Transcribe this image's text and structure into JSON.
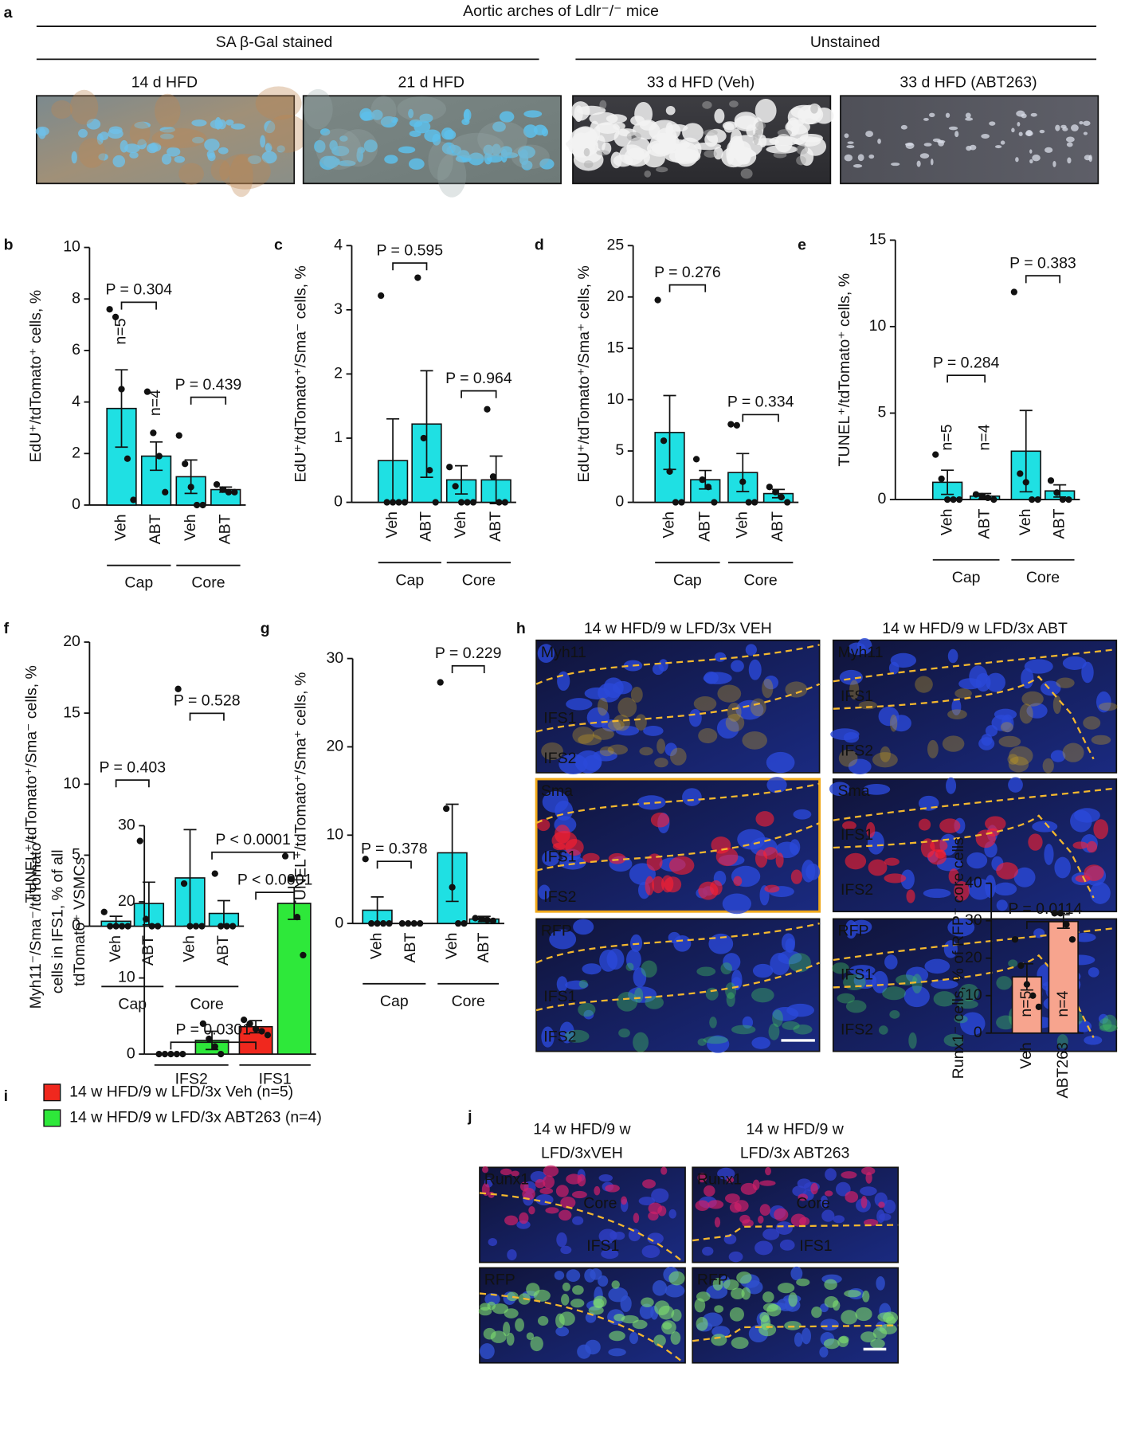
{
  "panel_a": {
    "letter": "a",
    "title": "Aortic arches of Ldlr⁻/⁻ mice",
    "groups": [
      "SA β-Gal stained",
      "Unstained"
    ],
    "images": [
      "14 d HFD",
      "21 d HFD",
      "33 d HFD (Veh)",
      "33 d HFD (ABT263)"
    ]
  },
  "panel_h": {
    "letter": "h",
    "columns": [
      "14 w HFD/9 w LFD/3x VEH",
      "14 w HFD/9 w LFD/3x ABT"
    ],
    "channels": [
      "Myh11",
      "Sma",
      "RFP"
    ],
    "layers": [
      "IFS1",
      "IFS2"
    ]
  },
  "panel_j": {
    "letter": "j",
    "columns": [
      [
        "14 w HFD/9 w",
        "LFD/3xVEH"
      ],
      [
        "14 w HFD/9 w",
        "LFD/3x ABT263"
      ]
    ],
    "channels": [
      "Runx1",
      "RFP"
    ],
    "labels": [
      "Core",
      "IFS1"
    ]
  },
  "chart_data": [
    {
      "type": "bar",
      "panel": "b",
      "ylabel": "EdU⁺/tdTomato⁺ cells, %",
      "categories": [
        "Veh",
        "ABT",
        "Veh",
        "ABT"
      ],
      "groups": [
        "Cap",
        "Core"
      ],
      "values": [
        3.75,
        1.9,
        1.1,
        0.6
      ],
      "errors": [
        1.5,
        0.55,
        0.65,
        0.1
      ],
      "points": [
        [
          7.6,
          7.3,
          4.5,
          1.8,
          0.2
        ],
        [
          4.4,
          2.8,
          1.9,
          0.5
        ],
        [
          2.7,
          1.6,
          0.7,
          0,
          0
        ],
        [
          0.8,
          0.6,
          0.5,
          0.5
        ]
      ],
      "color": "#1fe0e3",
      "ylim": [
        0,
        10
      ],
      "yticks": [
        0,
        2,
        4,
        6,
        8,
        10
      ],
      "annotations": [
        "P = 0.304",
        "P = 0.439",
        "n=5",
        "n=4"
      ]
    },
    {
      "type": "bar",
      "panel": "c",
      "ylabel": "EdU⁺/tdTomato⁺/Sma⁻ cells, %",
      "categories": [
        "Veh",
        "ABT",
        "Veh",
        "ABT"
      ],
      "groups": [
        "Cap",
        "Core"
      ],
      "values": [
        0.65,
        1.22,
        0.35,
        0.35
      ],
      "errors": [
        0.65,
        0.83,
        0.22,
        0.37
      ],
      "points": [
        [
          3.22,
          0,
          0,
          0,
          0
        ],
        [
          3.5,
          1.0,
          0.5,
          0
        ],
        [
          0.55,
          0.25,
          0,
          0,
          0
        ],
        [
          1.45,
          0.4,
          0,
          0
        ]
      ],
      "color": "#1fe0e3",
      "ylim": [
        0,
        4
      ],
      "yticks": [
        0,
        1,
        2,
        3,
        4
      ],
      "annotations": [
        "P = 0.595",
        "P = 0.964"
      ]
    },
    {
      "type": "bar",
      "panel": "d",
      "ylabel": "EdU⁺/tdTomato⁺/Sma⁺ cells, %",
      "categories": [
        "Veh",
        "ABT",
        "Veh",
        "ABT"
      ],
      "groups": [
        "Cap",
        "Core"
      ],
      "values": [
        6.8,
        2.2,
        2.9,
        0.85
      ],
      "errors": [
        3.6,
        0.9,
        1.85,
        0.4
      ],
      "points": [
        [
          19.7,
          6,
          3,
          0,
          0
        ],
        [
          4.2,
          2.2,
          1.5,
          0
        ],
        [
          7.6,
          7.5,
          2,
          0,
          0
        ],
        [
          1.5,
          1,
          0.5,
          0
        ]
      ],
      "color": "#1fe0e3",
      "ylim": [
        0,
        25
      ],
      "yticks": [
        0,
        5,
        10,
        15,
        20,
        25
      ],
      "annotations": [
        "P = 0.276",
        "P = 0.334"
      ]
    },
    {
      "type": "bar",
      "panel": "e",
      "ylabel": "TUNEL⁺/tdTomato⁺ cells, %",
      "categories": [
        "Veh",
        "ABT",
        "Veh",
        "ABT"
      ],
      "groups": [
        "Cap",
        "Core"
      ],
      "values": [
        1.0,
        0.2,
        2.8,
        0.5
      ],
      "errors": [
        0.7,
        0.15,
        2.35,
        0.35
      ],
      "points": [
        [
          2.6,
          1.2,
          0,
          0,
          0
        ],
        [
          0.3,
          0.2,
          0.1,
          0
        ],
        [
          12,
          1.5,
          1,
          0,
          0
        ],
        [
          1.1,
          0.4,
          0,
          0
        ]
      ],
      "color": "#1fe0e3",
      "ylim": [
        0,
        15
      ],
      "yticks": [
        0,
        5,
        10,
        15
      ],
      "annotations": [
        "P = 0.284",
        "P = 0.383",
        "n=5",
        "n=4"
      ]
    },
    {
      "type": "bar",
      "panel": "f",
      "ylabel": "TUNEL⁺/tdTomato⁺/Sma⁻ cells, %",
      "categories": [
        "Veh",
        "ABT",
        "Veh",
        "ABT"
      ],
      "groups": [
        "Cap",
        "Core"
      ],
      "values": [
        0.35,
        1.6,
        3.4,
        0.9
      ],
      "errors": [
        0.35,
        1.5,
        3.4,
        0.9
      ],
      "points": [
        [
          1.0,
          0,
          0,
          0,
          0
        ],
        [
          6.0,
          0.5,
          0,
          0
        ],
        [
          16.7,
          3,
          0,
          0,
          0
        ],
        [
          3.7,
          0,
          0,
          0
        ]
      ],
      "color": "#1fe0e3",
      "ylim": [
        0,
        20
      ],
      "yticks": [
        0,
        5,
        10,
        15,
        20
      ],
      "annotations": [
        "P = 0.403",
        "P = 0.528"
      ]
    },
    {
      "type": "bar",
      "panel": "g",
      "ylabel": "TUNEL⁺/tdTomato⁺/Sma⁺ cells, %",
      "categories": [
        "Veh",
        "ABT",
        "Veh",
        "ABT"
      ],
      "groups": [
        "Cap",
        "Core"
      ],
      "values": [
        1.5,
        0,
        8,
        0.5
      ],
      "errors": [
        1.5,
        0,
        5.5,
        0.3
      ],
      "points": [
        [
          7.3,
          0,
          0,
          0,
          0
        ],
        [
          0,
          0,
          0,
          0
        ],
        [
          27.3,
          13,
          4.1,
          0,
          0
        ],
        [
          0.6,
          0.5,
          0.4,
          0.3
        ]
      ],
      "color": "#1fe0e3",
      "ylim": [
        0,
        30
      ],
      "yticks": [
        0,
        10,
        20,
        30
      ],
      "annotations": [
        "P = 0.378",
        "P = 0.229"
      ]
    },
    {
      "type": "grouped-bar",
      "panel": "i",
      "ylabel": [
        "Myh11⁻/Sma⁻/tdTomato⁺",
        "cells in IFS1, % of all",
        "tdTomato⁺ VSMCs"
      ],
      "categories": [
        "IFS2",
        "IFS1"
      ],
      "series": [
        {
          "name": "14 w HFD/9 w LFD/3x Veh (n=5)",
          "color": "#f0281e",
          "values": [
            0,
            3.6
          ],
          "errors": [
            0,
            0.8
          ],
          "points": [
            [
              0,
              0,
              0,
              0,
              0
            ],
            [
              4.5,
              4,
              3.3,
              3,
              2.5
            ]
          ]
        },
        {
          "name": "14 w HFD/9 w LFD/3x ABT263 (n=4)",
          "color": "#2ee83a",
          "values": [
            1.8,
            19.8
          ],
          "errors": [
            1.2,
            2.1
          ],
          "points": [
            [
              4,
              2,
              1,
              0
            ],
            [
              26,
              23,
              18,
              13
            ]
          ]
        }
      ],
      "ylim": [
        0,
        30
      ],
      "yticks": [
        0,
        10,
        20,
        30
      ],
      "annotations": [
        "P = 0.0301",
        "P < 0.0001",
        "P < 0.0001"
      ]
    },
    {
      "type": "bar",
      "ylabel": "Runx1⁻ cells, % of RFP⁺ core cells",
      "categories": [
        "Veh",
        "ABT263"
      ],
      "values": [
        15,
        29.8
      ],
      "errors": [
        3.5,
        1.8
      ],
      "points": [
        [
          25,
          18,
          13,
          10,
          7
        ],
        [
          32,
          32,
          29,
          25
        ]
      ],
      "color": "#f7a48e",
      "ylim": [
        0,
        40
      ],
      "yticks": [
        0,
        10,
        20,
        30,
        40
      ],
      "annotations": [
        "P = 0.0114",
        "n=5",
        "n=4"
      ]
    }
  ]
}
